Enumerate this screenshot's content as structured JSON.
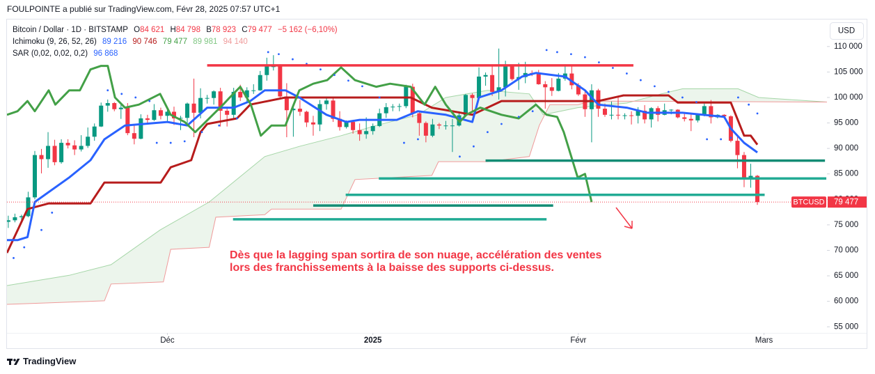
{
  "header": {
    "attribution": "FOULPOINTE a publié sur TradingView.com, Févr 28, 2025 07:57 UTC+1"
  },
  "legend": {
    "symbol": "Bitcoin / Dollar · 1D · BITSTAMP",
    "ohlc": [
      {
        "label": "O",
        "value": "84 621"
      },
      {
        "label": "H",
        "value": "84 798"
      },
      {
        "label": "B",
        "value": "78 923"
      },
      {
        "label": "C",
        "value": "79 477"
      }
    ],
    "change": "−5 162 (−6,10%)",
    "ichimoku": {
      "label": "Ichimoku (9, 26, 52, 26)",
      "values": [
        {
          "text": "89 216",
          "color": "#2962ff"
        },
        {
          "text": "90 746",
          "color": "#b71c1c"
        },
        {
          "text": "79 477",
          "color": "#43a047"
        },
        {
          "text": "89 981",
          "color": "#81c784"
        },
        {
          "text": "94 140",
          "color": "#ef9a9a"
        }
      ]
    },
    "sar": {
      "label": "SAR (0,02, 0,02, 0,2)",
      "value": "96 868",
      "color": "#2962ff"
    }
  },
  "currency_button": "USD",
  "footer": {
    "brand": "TradingView"
  },
  "chart_data": {
    "type": "candlestick",
    "symbol_tag": "BTCUSD",
    "last_price_label": "79 477",
    "annotation": [
      "Dès que la lagging span sortira de son nuage, accélération des ventes",
      "lors des franchissements à la baisse des supports ci-dessus."
    ],
    "annotation_color": "#f23645",
    "xlim": [
      -0.2,
      123.5
    ],
    "xticks": [
      {
        "value": 24,
        "label": "Déc"
      },
      {
        "value": 55,
        "label": "2025"
      },
      {
        "value": 86,
        "label": "Févr"
      },
      {
        "value": 114,
        "label": "Mars"
      }
    ],
    "ylim": [
      53800,
      115300
    ],
    "yticks": [
      {
        "value": 55000,
        "label": "55 000"
      },
      {
        "value": 60000,
        "label": "60 000"
      },
      {
        "value": 65000,
        "label": "65 000"
      },
      {
        "value": 70000,
        "label": "70 000"
      },
      {
        "value": 75000,
        "label": "75 000"
      },
      {
        "value": 80000,
        "label": "80 000"
      },
      {
        "value": 85000,
        "label": "85 000"
      },
      {
        "value": 90000,
        "label": "90 000"
      },
      {
        "value": 95000,
        "label": "95 000"
      },
      {
        "value": 100000,
        "label": "100 000"
      },
      {
        "value": 105000,
        "label": "105 000"
      },
      {
        "value": 110000,
        "label": "110 000"
      }
    ],
    "up_color": "#089981",
    "down_color": "#f23645",
    "open_first": 75600,
    "close": [
      75900,
      76500,
      76700,
      80400,
      88700,
      87900,
      90500,
      87300,
      91100,
      90600,
      89800,
      90500,
      92300,
      94300,
      98400,
      98900,
      97700,
      98000,
      93000,
      91900,
      95900,
      95600,
      97500,
      96400,
      97200,
      95900,
      96000,
      98800,
      97000,
      99900,
      99900,
      101200,
      97400,
      96600,
      101100,
      100000,
      101400,
      101400,
      104400,
      106100,
      106100,
      100200,
      97500,
      97800,
      97200,
      95100,
      94700,
      98700,
      99400,
      95800,
      94200,
      95200,
      93600,
      92800,
      93400,
      94400,
      96900,
      98100,
      98200,
      98300,
      102100,
      96900,
      95000,
      92500,
      94700,
      94500,
      94500,
      94500,
      96500,
      100500,
      99900,
      104100,
      104400,
      101100,
      102000,
      106100,
      103600,
      104000,
      104800,
      104700,
      102600,
      102000,
      101300,
      103700,
      104700,
      102400,
      100600,
      97700,
      101400,
      97800,
      96600,
      96600,
      96500,
      96500,
      96400,
      97400,
      95700,
      97900,
      96600,
      97500,
      97600,
      96100,
      95800,
      95500,
      96600,
      98300,
      96100,
      96600,
      96300,
      91500,
      88700,
      84300,
      84621,
      79477
    ],
    "high": [
      76800,
      77200,
      77000,
      81500,
      89500,
      89900,
      93200,
      91700,
      91800,
      91800,
      91600,
      92600,
      94100,
      94900,
      99000,
      99600,
      99100,
      98700,
      98900,
      94700,
      96700,
      96600,
      98700,
      98000,
      97900,
      98200,
      96400,
      99000,
      103700,
      101800,
      100500,
      101400,
      101900,
      98200,
      101900,
      102500,
      102000,
      102600,
      105200,
      107800,
      108300,
      106500,
      102800,
      98300,
      99500,
      97400,
      96400,
      99500,
      99900,
      99900,
      97300,
      95500,
      95500,
      94900,
      96100,
      94900,
      97800,
      98900,
      98700,
      98800,
      102500,
      102700,
      97200,
      95300,
      95800,
      95000,
      95400,
      95800,
      97300,
      100700,
      100800,
      105900,
      104900,
      106300,
      109600,
      107200,
      106400,
      106800,
      107000,
      105300,
      105400,
      103200,
      103800,
      104800,
      106500,
      106100,
      102800,
      101500,
      102600,
      101700,
      98800,
      99200,
      100100,
      96900,
      97300,
      98100,
      98500,
      98100,
      98300,
      98800,
      97700,
      97700,
      97000,
      96700,
      96900,
      98800,
      99500,
      96700,
      96700,
      96500,
      92500,
      89300,
      87000,
      84798
    ],
    "low": [
      74400,
      75500,
      75800,
      76500,
      80000,
      85100,
      86200,
      86700,
      87000,
      90000,
      88700,
      89400,
      90100,
      91500,
      94200,
      97200,
      97300,
      95800,
      92600,
      90800,
      91800,
      94700,
      95400,
      95700,
      95300,
      94600,
      93600,
      94700,
      92200,
      95900,
      98800,
      98600,
      94300,
      94300,
      95700,
      99300,
      99200,
      100700,
      101300,
      103300,
      105300,
      100000,
      92200,
      92300,
      96400,
      94200,
      92500,
      93400,
      97600,
      95200,
      93500,
      93900,
      92900,
      91500,
      91900,
      92700,
      94200,
      96000,
      97300,
      97300,
      97900,
      96100,
      92500,
      91200,
      92200,
      93800,
      93700,
      89300,
      94300,
      96400,
      97300,
      99800,
      102300,
      100300,
      99600,
      100200,
      103300,
      101500,
      102800,
      104200,
      102500,
      97800,
      100300,
      101200,
      103300,
      101600,
      100300,
      96200,
      91200,
      96200,
      96200,
      95700,
      95700,
      95700,
      94700,
      94900,
      94900,
      94100,
      95300,
      96500,
      96700,
      95900,
      95300,
      93400,
      95100,
      96300,
      94900,
      95900,
      95800,
      91200,
      86100,
      82400,
      82300,
      78923
    ],
    "ichimoku": {
      "cloud_color": "#43a047",
      "span_a": {
        "color": "#a5d6a7",
        "x": [
          -0.2,
          9.2,
          15.5,
          22.9,
          30.3,
          38.7,
          43.9,
          50.2,
          55.5,
          61.8,
          66,
          72.3,
          78.6,
          80.7,
          85.9,
          93.3,
          98.5,
          101.7,
          110.1,
          113.2,
          123.5
        ],
        "values": [
          63100,
          65100,
          67200,
          74000,
          79500,
          88400,
          90400,
          92500,
          94500,
          96600,
          100000,
          101400,
          100700,
          96600,
          98000,
          98900,
          100700,
          101700,
          101700,
          100000,
          99100
        ]
      },
      "span_b": {
        "color": "#ef9a9a",
        "x": [
          -0.2,
          14.5,
          15.5,
          23.4,
          24.5,
          30.3,
          31.3,
          38.7,
          39.7,
          50.2,
          52.3,
          63.9,
          64.9,
          72.3,
          78.6,
          80.1,
          81.7,
          85.9,
          88,
          123.5
        ],
        "values": [
          59400,
          60100,
          63400,
          63800,
          70200,
          70600,
          76500,
          77000,
          78100,
          78100,
          83900,
          84700,
          87400,
          87400,
          88400,
          94500,
          98600,
          98600,
          99300,
          99100
        ]
      },
      "base": {
        "color": "#b71c1c",
        "x": [
          -0.2,
          2.9,
          6.1,
          12.4,
          14.5,
          23,
          24.5,
          27.6,
          29,
          30,
          34.5,
          36.5,
          41.8,
          53.4,
          60.7,
          63.9,
          70,
          74.4,
          86,
          89,
          92.8,
          99.6,
          101,
          109,
          111,
          112,
          113
        ],
        "values": [
          69500,
          78100,
          79200,
          79200,
          83300,
          83300,
          86300,
          87700,
          93200,
          94800,
          95900,
          98600,
          100000,
          100000,
          100000,
          98000,
          96600,
          99300,
          99300,
          99300,
          100400,
          100400,
          99000,
          99000,
          92500,
          92500,
          90746
        ]
      },
      "conversion": {
        "color": "#2962ff",
        "x": [
          -0.2,
          1.4,
          2.9,
          4,
          9.2,
          12.4,
          14.5,
          17.6,
          24,
          27,
          30,
          34,
          36.5,
          38.7,
          41.8,
          43.9,
          48,
          51,
          53,
          58.6,
          61.8,
          66,
          70,
          71,
          74.4,
          77.5,
          79.6,
          84,
          87,
          89,
          93.3,
          96.4,
          101.7,
          108,
          109,
          111,
          113
        ],
        "values": [
          72000,
          72000,
          72600,
          79500,
          84300,
          87700,
          91800,
          94500,
          95200,
          94500,
          98000,
          98000,
          99300,
          101400,
          101400,
          100000,
          96600,
          95200,
          95600,
          95600,
          97300,
          96600,
          95200,
          100000,
          101400,
          104100,
          104800,
          104100,
          101400,
          98600,
          98000,
          97000,
          97000,
          96200,
          93900,
          91100,
          89216
        ]
      },
      "lagging": {
        "color": "#43a047",
        "x": [
          -0.2,
          1.4,
          2.9,
          4,
          6.1,
          7.1,
          9.2,
          10.8,
          12.4,
          14,
          15,
          16.1,
          17.6,
          19.7,
          22.9,
          24.5,
          26.6,
          28.2,
          30.3,
          32.4,
          33.4,
          35,
          36.6,
          38.1,
          39.7,
          41.8,
          43.9,
          46,
          48.1,
          50.2,
          52.3,
          55.5,
          57.6,
          60.7,
          62.8,
          64.4,
          66,
          68.1,
          69.1,
          71.2,
          74.4,
          77,
          79.6,
          81.2,
          82.8,
          83.8,
          85.9,
          87,
          88
        ],
        "values": [
          96600,
          97300,
          99300,
          97300,
          101400,
          98600,
          101400,
          101400,
          105500,
          106200,
          106200,
          100000,
          98000,
          98600,
          100700,
          96600,
          95200,
          93200,
          95900,
          98600,
          100000,
          102100,
          98600,
          92500,
          94500,
          94500,
          101400,
          102700,
          103400,
          105900,
          103400,
          102100,
          102700,
          102100,
          98600,
          102100,
          98600,
          95200,
          96600,
          98000,
          96600,
          95900,
          98600,
          96600,
          96200,
          93200,
          84300,
          85000,
          79477
        ]
      }
    },
    "sar": {
      "color": "#2962ff",
      "x": [
        0.8,
        2.4,
        5,
        6.6,
        15,
        17.1,
        19.2,
        21.3,
        22.4,
        24.5,
        26.6,
        29.2,
        31.8,
        34.5,
        39.2,
        40.8,
        42.9,
        45,
        47.1,
        49.2,
        51.3,
        53.4,
        56,
        59.7,
        61.8,
        68.1,
        70.2,
        72.3,
        74.4,
        77,
        79.1,
        81.2,
        82.8,
        84.9,
        87,
        89.1,
        91.2,
        93.3,
        95.4,
        97.5,
        99.6,
        101.7,
        103.8,
        105.4,
        107.5,
        109,
        110.1,
        111.7,
        113
      ],
      "values": [
        68500,
        70600,
        74000,
        77400,
        101400,
        100700,
        100000,
        99300,
        91100,
        91100,
        91400,
        93200,
        94500,
        95900,
        108900,
        108500,
        107500,
        106600,
        105500,
        104400,
        103300,
        102200,
        100000,
        91100,
        91800,
        88400,
        90400,
        93200,
        94800,
        96200,
        97300,
        109300,
        108900,
        108500,
        107900,
        106900,
        105800,
        104700,
        103400,
        102200,
        101100,
        100000,
        99100,
        91800,
        91800,
        92100,
        100000,
        98600,
        96868
      ]
    },
    "levels": [
      {
        "price": 106300,
        "from": 30,
        "to": 94.3,
        "color": "#f23645"
      },
      {
        "price": 87600,
        "from": 72,
        "to": 123.2,
        "color": "#138c74"
      },
      {
        "price": 84100,
        "from": 55.9,
        "to": 123.4,
        "color": "#22ab94"
      },
      {
        "price": 80900,
        "from": 50.9,
        "to": 114.1,
        "color": "#22ab94"
      },
      {
        "price": 78800,
        "from": 46,
        "to": 82.2,
        "color": "#138c74"
      },
      {
        "price": 76100,
        "from": 33.9,
        "to": 81.2,
        "color": "#22ab94"
      }
    ]
  }
}
